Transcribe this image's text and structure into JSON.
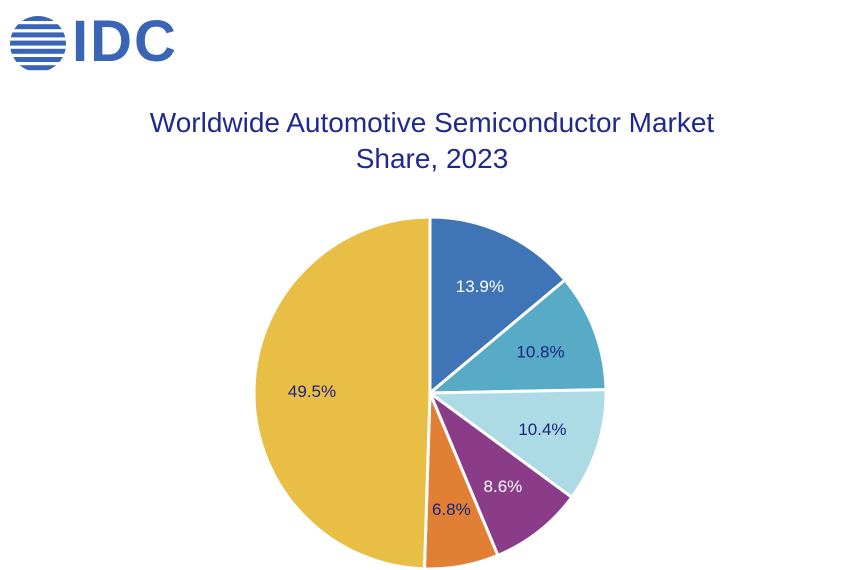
{
  "logo": {
    "text": "IDC",
    "color": "#3a64b4"
  },
  "chart_data": {
    "type": "pie",
    "title_line1": "Worldwide Automotive Semiconductor Market",
    "title_line2": "Share, 2023",
    "title_color": "#1f2a8c",
    "slices": [
      {
        "label": "13.9%",
        "value": 13.9,
        "color": "#3f74b7",
        "label_color": "#ffffff"
      },
      {
        "label": "10.8%",
        "value": 10.8,
        "color": "#58abc7",
        "label_color": "#1a237e"
      },
      {
        "label": "10.4%",
        "value": 10.4,
        "color": "#acdbe6",
        "label_color": "#1a237e"
      },
      {
        "label": "8.6%",
        "value": 8.6,
        "color": "#8b3c89",
        "label_color": "#ffffff"
      },
      {
        "label": "6.8%",
        "value": 6.8,
        "color": "#e17f35",
        "label_color": "#1a237e"
      },
      {
        "label": "49.5%",
        "value": 49.5,
        "color": "#e9be45",
        "label_color": "#1a237e"
      }
    ],
    "start": "top, clockwise",
    "legend": "none"
  }
}
